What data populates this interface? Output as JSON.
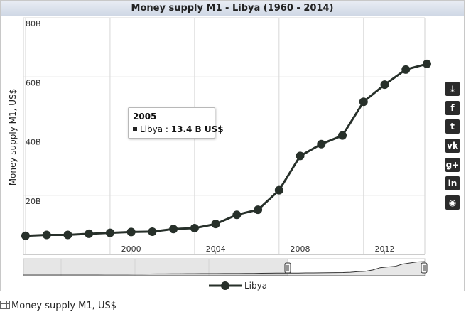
{
  "chart_data": {
    "type": "line",
    "title": "Money supply M1 - Libya (1960 - 2014)",
    "ylabel": "Money supply M1, US$",
    "xlabel": "",
    "ylim": [
      0,
      80
    ],
    "xlim": [
      1994.9,
      2013.9
    ],
    "y_unit": "B",
    "y_ticks": [
      {
        "value": 20,
        "label": "20B"
      },
      {
        "value": 40,
        "label": "40B"
      },
      {
        "value": 60,
        "label": "60B"
      },
      {
        "value": 80,
        "label": "80B"
      }
    ],
    "x_ticks": [
      {
        "value": 2000,
        "label": "2000"
      },
      {
        "value": 2004,
        "label": "2004"
      },
      {
        "value": 2008,
        "label": "2008"
      },
      {
        "value": 2012,
        "label": "2012"
      }
    ],
    "x_grid": [
      1995,
      1999,
      2003,
      2007,
      2011
    ],
    "series": [
      {
        "name": "Libya",
        "color": "#27302a",
        "x": [
          1995,
          1996,
          1997,
          1998,
          1999,
          2000,
          2001,
          2002,
          2003,
          2004,
          2005,
          2006,
          2007,
          2008,
          2009,
          2010,
          2011,
          2012,
          2013,
          2014
        ],
        "values": [
          6.3,
          6.6,
          6.6,
          7.0,
          7.3,
          7.6,
          7.7,
          8.6,
          8.9,
          10.3,
          13.4,
          15.1,
          21.7,
          33.3,
          37.3,
          40.2,
          51.6,
          57.4,
          62.5,
          64.4
        ]
      }
    ],
    "navigator_series": [
      0.3,
      0.3,
      0.3,
      0.3,
      0.3,
      0.3,
      0.35,
      0.35,
      0.4,
      0.4,
      0.5,
      0.6,
      0.8,
      1.0,
      1.2,
      1.4,
      1.5,
      1.7,
      2.0,
      2.3,
      2.7,
      3.0,
      3.2,
      3.3,
      3.5,
      3.6,
      3.7,
      3.8,
      3.9,
      4.1,
      4.3,
      4.8,
      5.2,
      5.7,
      6.0,
      6.3,
      6.6,
      6.6,
      7.0,
      7.3,
      7.6,
      7.7,
      8.6,
      8.9,
      10.3,
      13.4,
      15.1,
      21.7,
      33.3,
      37.3,
      40.2,
      51.6,
      57.4,
      62.5,
      64.4
    ],
    "legend": "bottom",
    "tooltip": {
      "year": "2005",
      "series": "Libya",
      "value": "13.4 B US$"
    }
  },
  "footer": {
    "label": "Money supply M1, US$"
  },
  "share": {
    "icons": [
      {
        "name": "download-icon",
        "glyph": "⤓"
      },
      {
        "name": "facebook-icon",
        "glyph": "f"
      },
      {
        "name": "twitter-icon",
        "glyph": "t"
      },
      {
        "name": "vk-icon",
        "glyph": "vk"
      },
      {
        "name": "google-plus-icon",
        "glyph": "g+"
      },
      {
        "name": "linkedin-icon",
        "glyph": "in"
      },
      {
        "name": "reddit-icon",
        "glyph": "◉"
      }
    ]
  }
}
